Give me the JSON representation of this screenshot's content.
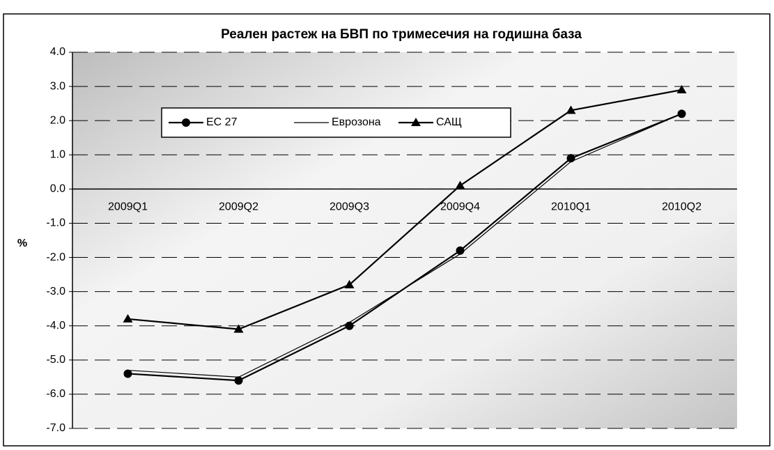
{
  "chart_data": {
    "type": "line",
    "title": "Реален растеж на БВП по тримесечия на годишна база",
    "y_label": "%",
    "categories": [
      "2009Q1",
      "2009Q2",
      "2009Q3",
      "2009Q4",
      "2010Q1",
      "2010Q2"
    ],
    "series": [
      {
        "name": "ЕС 27",
        "color": "#000000",
        "marker": "circle",
        "values": [
          -5.4,
          -5.6,
          -4.0,
          -1.8,
          0.9,
          2.2
        ]
      },
      {
        "name": "Еврозона",
        "color": "#000000",
        "marker": "none",
        "values": [
          -5.3,
          -5.5,
          -3.9,
          -1.9,
          0.8,
          2.2
        ]
      },
      {
        "name": "САЩ",
        "color": "#000000",
        "marker": "triangle",
        "values": [
          -3.8,
          -4.1,
          -2.8,
          0.1,
          2.3,
          2.9
        ]
      }
    ],
    "ylim": [
      -7,
      4
    ],
    "yticks": [
      {
        "value": -7,
        "label": "-7.0"
      },
      {
        "value": -6,
        "label": "-6.0"
      },
      {
        "value": -5,
        "label": "-5.0"
      },
      {
        "value": -4,
        "label": "-4.0"
      },
      {
        "value": -3,
        "label": "-3.0"
      },
      {
        "value": -2,
        "label": "-2.0"
      },
      {
        "value": -1,
        "label": "-1.0"
      },
      {
        "value": 0,
        "label": "0.0"
      },
      {
        "value": 1,
        "label": "1.0"
      },
      {
        "value": 2,
        "label": "2.0"
      },
      {
        "value": 3,
        "label": "3.0"
      },
      {
        "value": 4,
        "label": "4.0"
      }
    ],
    "grid": true
  }
}
